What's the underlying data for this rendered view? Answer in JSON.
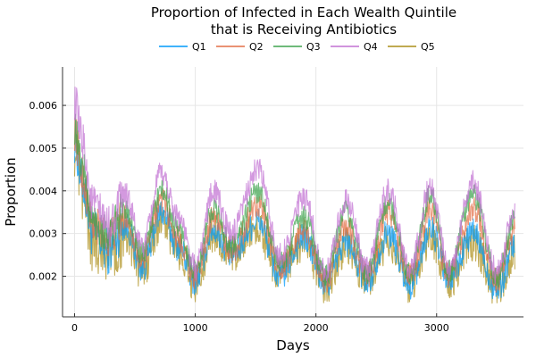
{
  "chart_data": {
    "type": "line",
    "title_line1": "Proportion of Infected in Each Wealth Quintile",
    "title_line2": "that is Receiving Antibiotics",
    "xlabel": "Days",
    "ylabel": "Proportion",
    "xlim": [
      -100,
      3720
    ],
    "ylim": [
      0.00105,
      0.0069
    ],
    "x_ticks": [
      0,
      1000,
      2000,
      3000
    ],
    "x_tick_labels": [
      "0",
      "1000",
      "2000",
      "3000"
    ],
    "y_ticks": [
      0.002,
      0.003,
      0.004,
      0.005,
      0.006
    ],
    "y_tick_labels": [
      "0.002",
      "0.003",
      "0.004",
      "0.005",
      "0.006"
    ],
    "grid": true,
    "legend_position": "top",
    "noise_amplitude": [
      0.00035,
      0.0003,
      0.00028,
      0.0003,
      0.00045
    ],
    "series": [
      {
        "name": "Q1",
        "color": "#009AFA",
        "x": [
          0,
          60,
          150,
          280,
          420,
          560,
          720,
          860,
          1000,
          1150,
          1300,
          1520,
          1700,
          1900,
          2080,
          2250,
          2420,
          2600,
          2780,
          2950,
          3100,
          3300,
          3500,
          3650
        ],
        "y": [
          0.0052,
          0.0042,
          0.003,
          0.0026,
          0.0032,
          0.0022,
          0.0035,
          0.0027,
          0.0019,
          0.0031,
          0.0025,
          0.0033,
          0.002,
          0.0029,
          0.0018,
          0.0028,
          0.0019,
          0.003,
          0.0018,
          0.0031,
          0.0019,
          0.003,
          0.0017,
          0.0027
        ]
      },
      {
        "name": "Q2",
        "color": "#E36F47",
        "x": [
          0,
          60,
          150,
          280,
          420,
          560,
          720,
          860,
          1000,
          1150,
          1300,
          1520,
          1700,
          1900,
          2080,
          2250,
          2420,
          2600,
          2780,
          2950,
          3100,
          3300,
          3500,
          3650
        ],
        "y": [
          0.0054,
          0.0044,
          0.0032,
          0.0029,
          0.0034,
          0.0024,
          0.0038,
          0.0029,
          0.002,
          0.0034,
          0.0026,
          0.0037,
          0.0022,
          0.0031,
          0.0019,
          0.0032,
          0.002,
          0.0035,
          0.002,
          0.0036,
          0.002,
          0.0036,
          0.0019,
          0.0031
        ]
      },
      {
        "name": "Q3",
        "color": "#3EA44E",
        "x": [
          0,
          60,
          150,
          280,
          420,
          560,
          720,
          860,
          1000,
          1150,
          1300,
          1520,
          1700,
          1900,
          2080,
          2250,
          2420,
          2600,
          2780,
          2950,
          3100,
          3300,
          3500,
          3650
        ],
        "y": [
          0.0055,
          0.0046,
          0.0033,
          0.003,
          0.0036,
          0.0025,
          0.004,
          0.0031,
          0.0021,
          0.0036,
          0.0027,
          0.004,
          0.0023,
          0.0034,
          0.002,
          0.0035,
          0.0021,
          0.0037,
          0.0021,
          0.0039,
          0.0021,
          0.0039,
          0.002,
          0.0033
        ]
      },
      {
        "name": "Q4",
        "color": "#C271D2",
        "x": [
          0,
          60,
          150,
          280,
          420,
          560,
          720,
          860,
          1000,
          1150,
          1300,
          1520,
          1700,
          1900,
          2080,
          2250,
          2420,
          2600,
          2780,
          2950,
          3100,
          3300,
          3500,
          3650
        ],
        "y": [
          0.0061,
          0.0052,
          0.0037,
          0.0032,
          0.0039,
          0.0027,
          0.0044,
          0.0034,
          0.0022,
          0.004,
          0.003,
          0.0045,
          0.0025,
          0.0038,
          0.0021,
          0.0038,
          0.0022,
          0.004,
          0.0022,
          0.0041,
          0.0022,
          0.0042,
          0.0021,
          0.0035
        ]
      },
      {
        "name": "Q5",
        "color": "#AC8E18",
        "x": [
          0,
          60,
          150,
          280,
          420,
          560,
          720,
          860,
          1000,
          1150,
          1300,
          1520,
          1700,
          1900,
          2080,
          2250,
          2420,
          2600,
          2780,
          2950,
          3100,
          3300,
          3500,
          3650
        ],
        "y": [
          0.005,
          0.004,
          0.0028,
          0.0026,
          0.0029,
          0.0021,
          0.0033,
          0.0026,
          0.0018,
          0.003,
          0.0025,
          0.0031,
          0.002,
          0.0028,
          0.0018,
          0.0027,
          0.0019,
          0.0028,
          0.0018,
          0.0029,
          0.0019,
          0.0028,
          0.0017,
          0.0026
        ]
      }
    ]
  }
}
